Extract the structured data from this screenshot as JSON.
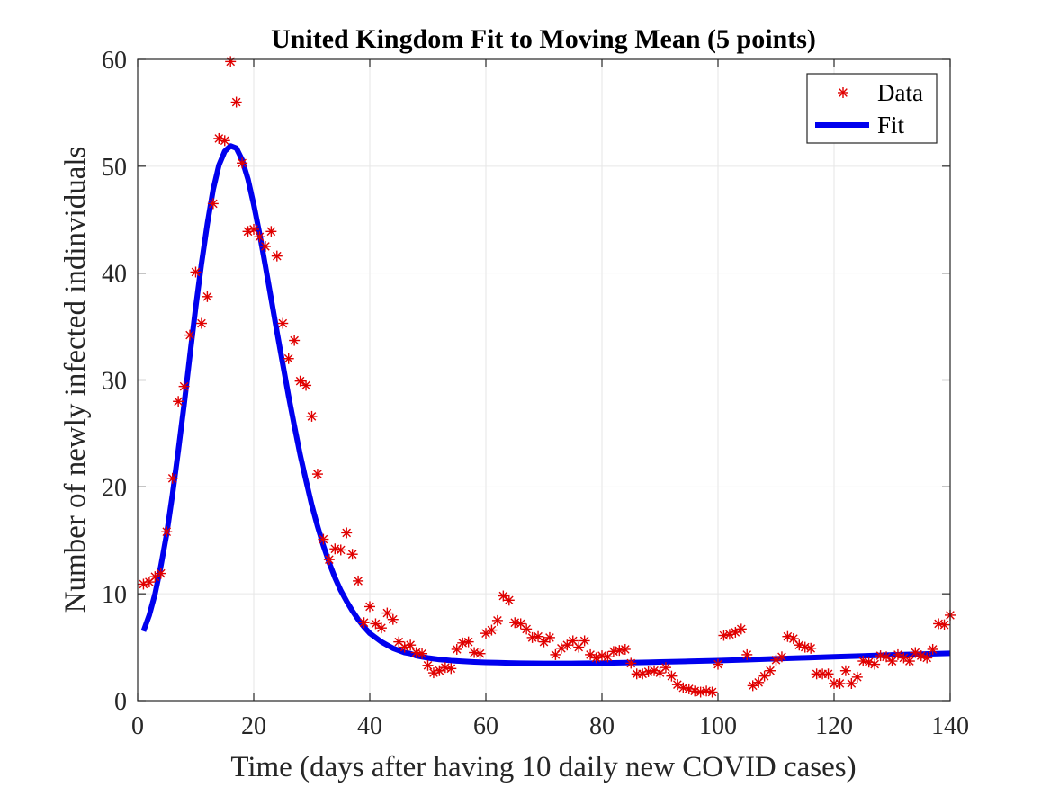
{
  "chart_data": {
    "type": "scatter",
    "title": "United Kingdom Fit to Moving Mean (5 points)",
    "xlabel": "Time (days after having 10 daily new COVID cases)",
    "ylabel": "Number of newly infected indinviduals",
    "xlim": [
      0,
      140
    ],
    "ylim": [
      0,
      60
    ],
    "xticks": [
      0,
      20,
      40,
      60,
      80,
      100,
      120,
      140
    ],
    "yticks": [
      0,
      10,
      20,
      30,
      40,
      50,
      60
    ],
    "grid": true,
    "legend_position": "top-right",
    "series": [
      {
        "name": "Data",
        "kind": "scatter",
        "marker": "asterisk",
        "color": "#e00000",
        "x": [
          1,
          2,
          3,
          4,
          5,
          6,
          7,
          8,
          9,
          10,
          11,
          12,
          13,
          14,
          15,
          16,
          17,
          18,
          19,
          20,
          21,
          22,
          23,
          24,
          25,
          26,
          27,
          28,
          29,
          30,
          31,
          32,
          33,
          34,
          35,
          36,
          37,
          38,
          39,
          40,
          41,
          42,
          43,
          44,
          45,
          46,
          47,
          48,
          49,
          50,
          51,
          52,
          53,
          54,
          55,
          56,
          57,
          58,
          59,
          60,
          61,
          62,
          63,
          64,
          65,
          66,
          67,
          68,
          69,
          70,
          71,
          72,
          73,
          74,
          75,
          76,
          77,
          78,
          79,
          80,
          81,
          82,
          83,
          84,
          85,
          86,
          87,
          88,
          89,
          90,
          91,
          92,
          93,
          94,
          95,
          96,
          97,
          98,
          99,
          100,
          101,
          102,
          103,
          104,
          105,
          106,
          107,
          108,
          109,
          110,
          111,
          112,
          113,
          114,
          115,
          116,
          117,
          118,
          119,
          120,
          121,
          122,
          123,
          124,
          125,
          126,
          127,
          128,
          129,
          130,
          131,
          132,
          133,
          134,
          135,
          136,
          137,
          138,
          139,
          140
        ],
        "y": [
          10.9,
          11.1,
          11.6,
          11.9,
          15.8,
          20.8,
          28.0,
          29.4,
          34.2,
          40.1,
          35.3,
          37.8,
          46.5,
          52.6,
          52.4,
          59.8,
          56.0,
          50.3,
          43.9,
          44.1,
          43.4,
          42.5,
          43.9,
          41.6,
          35.3,
          32.0,
          33.7,
          29.9,
          29.5,
          26.6,
          21.2,
          15.1,
          13.2,
          14.2,
          14.1,
          15.7,
          13.7,
          11.2,
          7.3,
          8.8,
          7.2,
          6.8,
          8.2,
          7.6,
          5.5,
          5.0,
          5.2,
          4.5,
          4.4,
          3.3,
          2.6,
          2.8,
          3.1,
          3.0,
          4.8,
          5.4,
          5.5,
          4.5,
          4.4,
          6.3,
          6.6,
          7.5,
          9.8,
          9.4,
          7.3,
          7.2,
          6.7,
          5.9,
          6.0,
          5.5,
          5.9,
          4.3,
          4.9,
          5.2,
          5.6,
          5.0,
          5.6,
          4.3,
          4.0,
          4.2,
          4.1,
          4.6,
          4.7,
          4.8,
          3.5,
          2.5,
          2.5,
          2.7,
          2.8,
          2.6,
          3.1,
          2.3,
          1.5,
          1.2,
          1.1,
          0.9,
          0.8,
          0.9,
          0.8,
          3.4,
          6.1,
          6.2,
          6.4,
          6.7,
          4.3,
          1.4,
          1.7,
          2.3,
          2.8,
          3.8,
          4.1,
          6.0,
          5.8,
          5.2,
          5.0,
          4.9,
          2.5,
          2.5,
          2.5,
          1.6,
          1.6,
          2.8,
          1.6,
          2.2,
          3.7,
          3.6,
          3.4,
          4.2,
          4.1,
          3.7,
          4.3,
          4.0,
          3.7,
          4.5,
          4.2,
          4.0,
          4.8,
          7.2,
          7.1,
          8.0
        ]
      },
      {
        "name": "Fit",
        "kind": "line",
        "color": "#0000ee",
        "x": [
          1,
          2,
          3,
          4,
          5,
          6,
          7,
          8,
          9,
          10,
          11,
          12,
          13,
          14,
          15,
          16,
          17,
          18,
          19,
          20,
          21,
          22,
          23,
          24,
          25,
          26,
          27,
          28,
          29,
          30,
          31,
          32,
          33,
          34,
          35,
          36,
          37,
          38,
          39,
          40,
          41,
          42,
          43,
          44,
          45,
          46,
          47,
          48,
          49,
          50,
          52,
          54,
          56,
          58,
          60,
          62,
          64,
          66,
          68,
          70,
          72,
          74,
          76,
          78,
          80,
          82,
          84,
          86,
          88,
          90,
          95,
          100,
          105,
          110,
          115,
          120,
          125,
          130,
          135,
          140
        ],
        "y": [
          6.5,
          8.0,
          10.0,
          12.6,
          15.6,
          19.3,
          23.4,
          27.7,
          32.3,
          36.8,
          40.9,
          44.6,
          47.8,
          50.1,
          51.4,
          51.9,
          51.7,
          50.6,
          48.8,
          46.4,
          43.7,
          40.7,
          37.6,
          34.5,
          31.5,
          28.5,
          25.7,
          23.0,
          20.6,
          18.3,
          16.3,
          14.5,
          12.9,
          11.5,
          10.3,
          9.3,
          8.4,
          7.6,
          6.9,
          6.3,
          5.9,
          5.5,
          5.2,
          4.9,
          4.7,
          4.5,
          4.4,
          4.2,
          4.1,
          4.0,
          3.85,
          3.75,
          3.68,
          3.62,
          3.58,
          3.55,
          3.52,
          3.5,
          3.49,
          3.48,
          3.48,
          3.48,
          3.49,
          3.5,
          3.51,
          3.53,
          3.55,
          3.57,
          3.59,
          3.62,
          3.68,
          3.75,
          3.83,
          3.92,
          4.01,
          4.1,
          4.19,
          4.28,
          4.36,
          4.43
        ]
      }
    ]
  }
}
